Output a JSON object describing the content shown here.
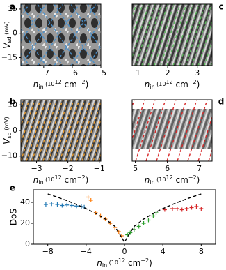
{
  "chart_data": [
    {
      "type": "heatmap",
      "label": "a",
      "line_color": "#4a8fc9",
      "xlim": [
        -7.8,
        -5
      ],
      "xticks": [
        {
          "value": -7,
          "label": "−7"
        },
        {
          "value": -6,
          "label": "−6"
        },
        {
          "value": -5,
          "label": "−5"
        }
      ],
      "ylim": [
        -20,
        18
      ],
      "yticks": [
        {
          "value": -15,
          "label": "−15"
        },
        0,
        15
      ],
      "xlabel": [
        "n",
        "in",
        "  (10",
        "12",
        " cm",
        "−2",
        ")"
      ],
      "ylabel": [
        "V",
        "sd",
        " (mV)"
      ]
    },
    {
      "type": "heatmap",
      "label": "c",
      "line_color": "#5cb85c",
      "xlim": [
        0.8,
        3.5
      ],
      "xticks": [
        1,
        2,
        3
      ],
      "ylim": [
        -20,
        18
      ],
      "xlabel": [
        "n",
        "in",
        "  (10",
        "12",
        " cm",
        "−2",
        ")"
      ]
    },
    {
      "type": "heatmap",
      "label": "b",
      "line_color": "#f0a030",
      "xlim": [
        -3.5,
        -0.95
      ],
      "xticks": [
        {
          "value": -3,
          "label": "−3"
        },
        {
          "value": -2,
          "label": "−2"
        },
        {
          "value": -1,
          "label": "−1"
        }
      ],
      "ylim": [
        -12,
        12
      ],
      "yticks": [
        {
          "value": -10,
          "label": "−10"
        },
        0,
        10
      ],
      "xlabel": [
        "n",
        "in",
        "  (10",
        "12",
        " cm",
        "−2",
        ")"
      ],
      "ylabel": [
        "V",
        "sd",
        " (mV)"
      ]
    },
    {
      "type": "heatmap",
      "label": "d",
      "line_color": "#d62728",
      "xlim": [
        4.9,
        7.4
      ],
      "xticks": [
        5,
        6,
        7
      ],
      "ylim": [
        -12,
        12
      ],
      "xlabel": [
        "n",
        "in",
        "  (10",
        "12",
        " cm",
        "−2",
        ")"
      ]
    },
    {
      "type": "scatter",
      "label": "e",
      "xlim": [
        -9.5,
        9.5
      ],
      "xticks": [
        {
          "value": -8,
          "label": "−8"
        },
        {
          "value": -4,
          "label": "−4"
        },
        0,
        4,
        8
      ],
      "ylim": [
        0,
        52
      ],
      "yticks": [
        0,
        20,
        40
      ],
      "xlabel": [
        "n",
        "in",
        "  (10",
        "12",
        " cm",
        "−2",
        ")"
      ],
      "ylabel": "DoS",
      "series": [
        {
          "color": "#1f77b4",
          "x": [
            -8.2,
            -7.6,
            -7,
            -6.5,
            -6,
            -5.5,
            -5,
            -4.5,
            -4.2
          ],
          "values": [
            38,
            38.5,
            38,
            37,
            37.5,
            37,
            36.5,
            36,
            35.5
          ]
        },
        {
          "color": "#ff7f0e",
          "x": [
            -3.8,
            -3.5,
            -3,
            -2.5,
            -2,
            -1.5,
            -1,
            -0.6,
            -0.3
          ],
          "values": [
            45,
            42,
            30,
            27,
            24,
            20,
            16,
            12,
            8
          ]
        },
        {
          "color": "#2ca02c",
          "x": [
            0.3,
            0.6,
            1,
            1.5,
            2,
            2.5,
            3,
            3.3
          ],
          "values": [
            9,
            11,
            14,
            17,
            20,
            23,
            27,
            30
          ]
        },
        {
          "color": "#d62728",
          "x": [
            4.2,
            5,
            5.5,
            6,
            6.5,
            7,
            7.5,
            8
          ],
          "values": [
            33,
            34,
            34,
            33,
            34,
            35,
            36,
            34
          ]
        },
        {
          "color": "#000000",
          "dashed": true,
          "x": [
            -8,
            -7,
            -6,
            -5,
            -4,
            -3,
            -2,
            -1,
            0,
            1,
            2,
            3,
            4,
            5,
            6,
            7,
            8
          ],
          "values": [
            48,
            45,
            41.6,
            38,
            34,
            29.4,
            24,
            17,
            2,
            17,
            24,
            29.4,
            34,
            38,
            41.6,
            45,
            48
          ]
        }
      ]
    }
  ]
}
